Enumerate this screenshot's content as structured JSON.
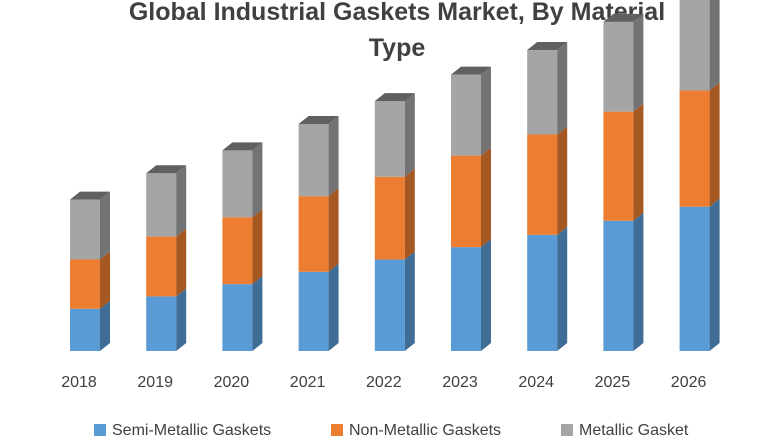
{
  "chart_data": {
    "type": "bar",
    "stacked": true,
    "three_d": true,
    "title": "Global Industrial Gaskets Market, By Material Type",
    "categories": [
      "2018",
      "2019",
      "2020",
      "2021",
      "2022",
      "2023",
      "2024",
      "2025",
      "2026"
    ],
    "series": [
      {
        "name": "Semi-Metallic Gaskets",
        "color": "#5b9bd5",
        "values": [
          24,
          31,
          38,
          45,
          52,
          59,
          66,
          74,
          82
        ]
      },
      {
        "name": "Non-Metallic Gaskets",
        "color": "#ed7d31",
        "values": [
          28,
          34,
          38,
          43,
          47,
          52,
          57,
          62,
          66
        ]
      },
      {
        "name": "Metallic Gasket",
        "color": "#a5a5a5",
        "values": [
          34,
          36,
          38,
          41,
          43,
          46,
          48,
          51,
          53
        ]
      }
    ],
    "ylim": [
      0,
      200
    ],
    "y_axis_visible": false,
    "grid": false,
    "legend": "bottom"
  }
}
